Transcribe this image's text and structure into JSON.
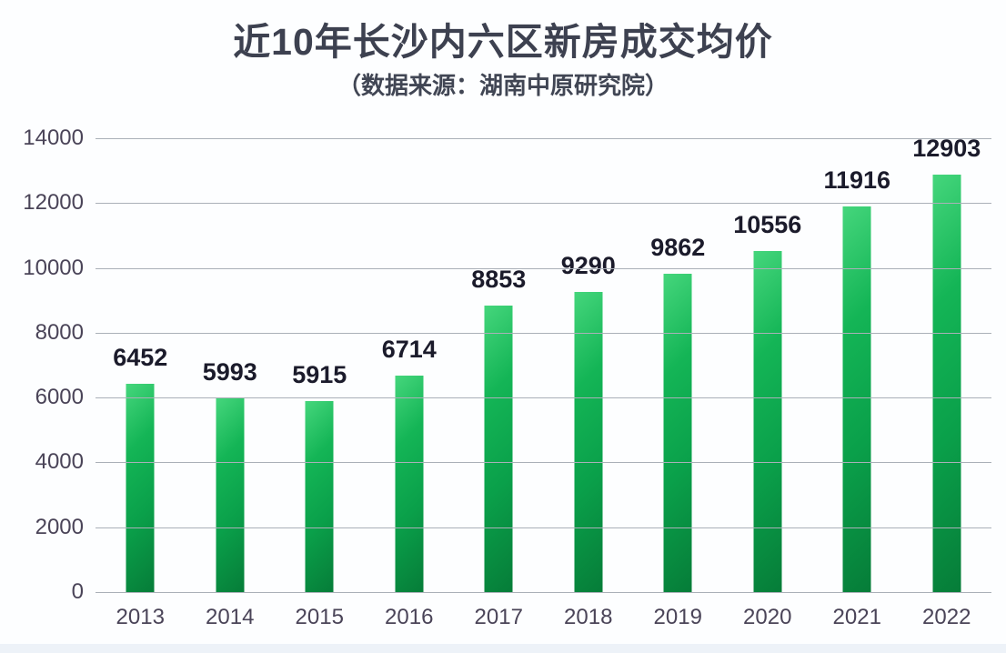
{
  "title": "近10年长沙内六区新房成交均价",
  "subtitle": "（数据来源：湖南中原研究院）",
  "colors": {
    "bar_gradient_light": "#45d67c",
    "bar_gradient_mid": "#0fae51",
    "bar_gradient_dark": "#067c38",
    "title_text": "#3d4150",
    "axis_text": "#4a4458",
    "value_label_text": "#1b1b2b",
    "gridline": "#aab0b8",
    "background": "#fdfeff",
    "bottom_strip": "#edf2f8"
  },
  "chart_data": {
    "type": "bar",
    "title": "近10年长沙内六区新房成交均价",
    "subtitle": "（数据来源：湖南中原研究院）",
    "categories": [
      "2013",
      "2014",
      "2015",
      "2016",
      "2017",
      "2018",
      "2019",
      "2020",
      "2021",
      "2022"
    ],
    "values": [
      6452,
      5993,
      5915,
      6714,
      8853,
      9290,
      9862,
      10556,
      11916,
      12903
    ],
    "xlabel": "",
    "ylabel": "",
    "ylim": [
      0,
      14000
    ],
    "yticks": [
      0,
      2000,
      4000,
      6000,
      8000,
      10000,
      12000,
      14000
    ],
    "grid": true,
    "legend": "none",
    "data_labels": true
  }
}
